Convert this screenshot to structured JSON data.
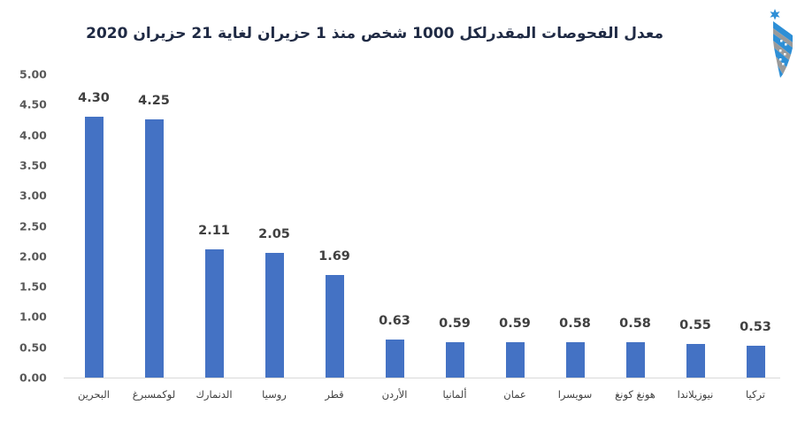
{
  "header": {
    "title": "معدل الفحوصات المقدرلكل 1000 شخص منذ 1 حزيران لغاية 21 حزيران 2020"
  },
  "logo": {
    "icon": "jordan-star-ribbon-logo-icon",
    "colors": {
      "blue": "#2e8fd6",
      "gray": "#9a9a9a",
      "star": "#2e8fd6"
    }
  },
  "colors": {
    "bar": "#4472c4",
    "axis_text": "#595959",
    "label_text": "#404040",
    "title_text": "#1f2a44",
    "baseline": "#d9d9d9"
  },
  "chart_data": {
    "type": "bar",
    "title": "معدل الفحوصات المقدرلكل 1000 شخص منذ 1 حزيران لغاية 21 حزيران 2020",
    "xlabel": "",
    "ylabel": "",
    "ylim": [
      0,
      5
    ],
    "yticks": [
      "0.00",
      "0.50",
      "1.00",
      "1.50",
      "2.00",
      "2.50",
      "3.00",
      "3.50",
      "4.00",
      "4.50",
      "5.00"
    ],
    "grid": false,
    "legend": null,
    "categories": [
      "البحرين",
      "لوكمسبرغ",
      "الدنمارك",
      "روسيا",
      "قطر",
      "الأردن",
      "ألمانيا",
      "عمان",
      "سويسرا",
      "هونغ كونغ",
      "نيوزيلاندا",
      "تركيا"
    ],
    "values": [
      4.3,
      4.25,
      2.11,
      2.05,
      1.69,
      0.63,
      0.59,
      0.59,
      0.58,
      0.58,
      0.55,
      0.53
    ],
    "value_labels": [
      "4.30",
      "4.25",
      "2.11",
      "2.05",
      "1.69",
      "0.63",
      "0.59",
      "0.59",
      "0.58",
      "0.58",
      "0.55",
      "0.53"
    ]
  }
}
